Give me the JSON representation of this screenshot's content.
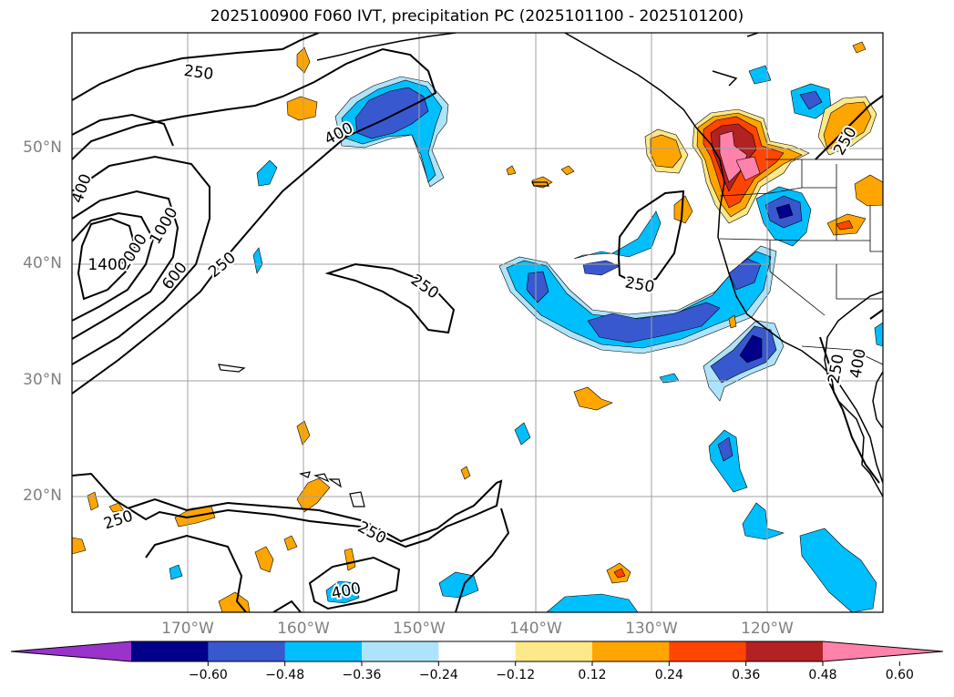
{
  "title": "2025100900 F060 IVT, precipitation PC (2025101100 - 2025101200)",
  "map": {
    "extent": {
      "lon_min": -180,
      "lon_max": -110,
      "lat_min": 10,
      "lat_max": 60
    },
    "lat_ticks": [
      {
        "value": 50,
        "label": "50°N"
      },
      {
        "value": 40,
        "label": "40°N"
      },
      {
        "value": 30,
        "label": "30°N"
      },
      {
        "value": 20,
        "label": "20°N"
      }
    ],
    "lon_ticks": [
      {
        "value": -170,
        "label": "170°W"
      },
      {
        "value": -160,
        "label": "160°W"
      },
      {
        "value": -150,
        "label": "150°W"
      },
      {
        "value": -140,
        "label": "140°W"
      },
      {
        "value": -130,
        "label": "130°W"
      },
      {
        "value": -120,
        "label": "120°W"
      }
    ],
    "gridlines": true,
    "ivt_contour_labels": [
      "250",
      "400",
      "600",
      "1000",
      "1400"
    ]
  },
  "colorbar": {
    "levels": [
      -0.6,
      -0.48,
      -0.36,
      -0.24,
      -0.12,
      0.12,
      0.24,
      0.36,
      0.48,
      0.6
    ],
    "tick_labels": [
      "−0.60",
      "−0.48",
      "−0.36",
      "−0.24",
      "−0.12",
      "0.12",
      "0.24",
      "0.36",
      "0.48",
      "0.60"
    ],
    "colors": [
      "#9933cc",
      "#00008b",
      "#3858cf",
      "#00bfff",
      "#ade4fb",
      "#ffffff",
      "#fde88a",
      "#ffa500",
      "#ff4500",
      "#b22222",
      "#ff82ab"
    ],
    "extend": "both"
  }
}
